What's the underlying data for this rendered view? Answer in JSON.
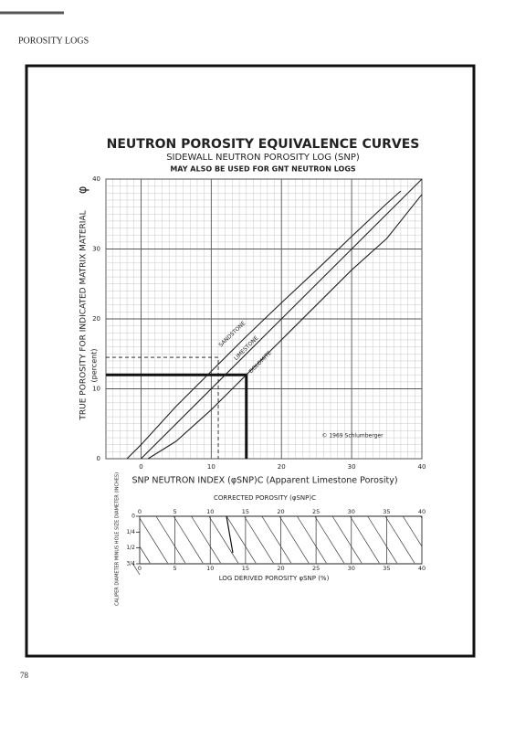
{
  "header": "POROSITY LOGS",
  "page_number": "78",
  "chart_data": [
    {
      "type": "line",
      "title": "NEUTRON POROSITY EQUIVALENCE CURVES",
      "subtitle": "SIDEWALL NEUTRON POROSITY LOG (SNP)",
      "note": "MAY ALSO BE USED FOR GNT NEUTRON LOGS",
      "xlabel": "SNP NEUTRON INDEX (φSNP)C (Apparent Limestone Porosity)",
      "ylabel": "TRUE POROSITY FOR INDICATED MATRIX MATERIAL",
      "ylabel_symbol": "φ",
      "ylabel_unit": "(percent)",
      "copyright": "© 1969 Schlumberger",
      "xlim": [
        -5,
        40
      ],
      "xticks": [
        0,
        10,
        20,
        30,
        40
      ],
      "ylim": [
        0,
        40
      ],
      "yticks": [
        0,
        10,
        20,
        30,
        40
      ],
      "grid": true,
      "series": [
        {
          "name": "SANDSTONE",
          "color": "#222222",
          "x": [
            -2,
            0,
            5,
            10,
            15,
            20,
            25,
            30,
            35,
            37
          ],
          "values": [
            0,
            2,
            7.5,
            12.5,
            17.5,
            22.3,
            27,
            31.8,
            36.5,
            38.3
          ]
        },
        {
          "name": "LIMESTONE",
          "color": "#222222",
          "x": [
            0,
            40
          ],
          "values": [
            0,
            40
          ]
        },
        {
          "name": "DOLOMITE",
          "color": "#222222",
          "x": [
            1,
            5,
            10,
            15,
            20,
            25,
            30,
            35,
            40
          ],
          "values": [
            0,
            2.5,
            7,
            12,
            17,
            22,
            27,
            31.5,
            37.8
          ]
        }
      ],
      "example_lines": [
        {
          "x": 11,
          "y": 14.5,
          "style": "dashed"
        },
        {
          "x": 15,
          "y": 12,
          "style": "bold"
        }
      ]
    },
    {
      "type": "nomogram",
      "top_label": "CORRECTED POROSITY (φSNP)C",
      "xlabel": "LOG DERIVED POROSITY φSNP (%)",
      "ylabel": "CALIPER DIAMETER MINUS HOLE SIZE DIAMETER (INCHES)",
      "xlim": [
        0,
        40
      ],
      "xticks": [
        0,
        5,
        10,
        15,
        20,
        25,
        30,
        35,
        40
      ],
      "ylim": [
        0,
        0.75
      ],
      "yticks": [
        0,
        {
          "value": 0.25,
          "label": "1/4"
        },
        {
          "value": 0.5,
          "label": "1/2"
        },
        {
          "value": 0.75,
          "label": "3/4"
        }
      ]
    }
  ]
}
